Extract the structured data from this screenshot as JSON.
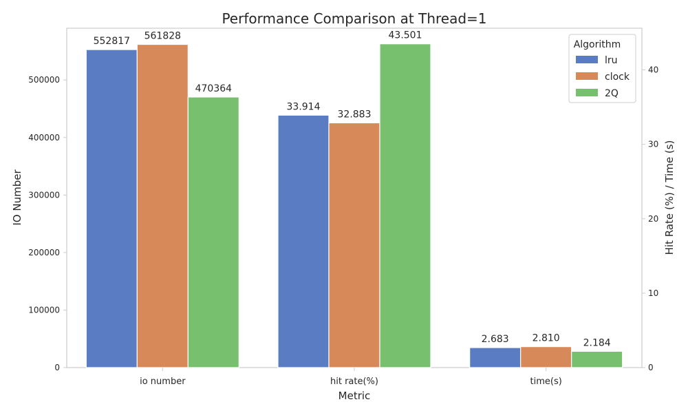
{
  "chart_data": {
    "type": "bar",
    "title": "Performance Comparison at Thread=1",
    "xlabel": "Metric",
    "ylabel": "IO Number",
    "y2label": "Hit Rate (%) / Time (s)",
    "categories": [
      "io number",
      "hit rate(%)",
      "time(s)"
    ],
    "ylim": [
      0,
      590000
    ],
    "y2lim": [
      0,
      45.6
    ],
    "yticks": [
      0,
      100000,
      200000,
      300000,
      400000,
      500000
    ],
    "y2ticks": [
      0,
      10,
      20,
      30,
      40
    ],
    "grid": false,
    "legend": {
      "title": "Algorithm",
      "position": "top-right"
    },
    "series": [
      {
        "name": "lru",
        "color": "#5a7cc2",
        "values": [
          552817,
          33.914,
          2.683
        ],
        "labels": [
          "552817",
          "33.914",
          "2.683"
        ]
      },
      {
        "name": "clock",
        "color": "#d8895a",
        "values": [
          561828,
          32.883,
          2.81
        ],
        "labels": [
          "561828",
          "32.883",
          "2.810"
        ]
      },
      {
        "name": "2Q",
        "color": "#76c06e",
        "values": [
          470364,
          43.501,
          2.184
        ],
        "labels": [
          "470364",
          "43.501",
          "2.184"
        ]
      }
    ],
    "axis_for_category": [
      "left",
      "right",
      "right"
    ]
  }
}
